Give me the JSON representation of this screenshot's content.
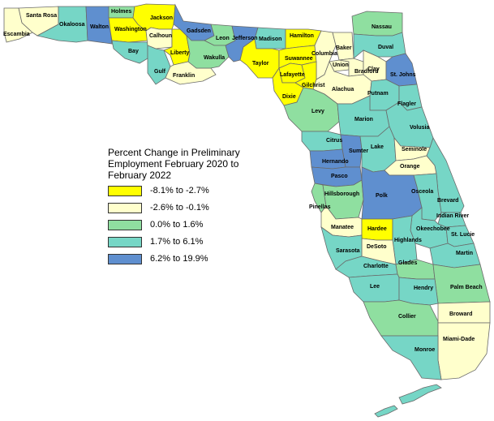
{
  "colors": {
    "c1": "#ffff00",
    "c2": "#ffffcc",
    "c3": "#8fdfa0",
    "c4": "#76d6c6",
    "c5": "#5f8fcf",
    "border": "#6a6a6a",
    "background": "#ffffff"
  },
  "legend": {
    "title": "Percent Change in Preliminary Employment February 2020 to February 2022",
    "items": [
      {
        "label": "-8.1% to -2.7%",
        "class": "c1"
      },
      {
        "label": "-2.6% to -0.1%",
        "class": "c2"
      },
      {
        "label": "0.0% to 1.6%",
        "class": "c3"
      },
      {
        "label": "1.7% to 6.1%",
        "class": "c4"
      },
      {
        "label": "6.2% to 19.9%",
        "class": "c5"
      }
    ]
  },
  "counties": [
    {
      "name": "Escambia",
      "class": "c2"
    },
    {
      "name": "Santa Rosa",
      "class": "c2"
    },
    {
      "name": "Okaloosa",
      "class": "c4"
    },
    {
      "name": "Walton",
      "class": "c5"
    },
    {
      "name": "Holmes",
      "class": "c3"
    },
    {
      "name": "Washington",
      "class": "c1"
    },
    {
      "name": "Jackson",
      "class": "c1"
    },
    {
      "name": "Bay",
      "class": "c4"
    },
    {
      "name": "Calhoun",
      "class": "c2"
    },
    {
      "name": "Gulf",
      "class": "c4"
    },
    {
      "name": "Liberty",
      "class": "c1"
    },
    {
      "name": "Gadsden",
      "class": "c5"
    },
    {
      "name": "Franklin",
      "class": "c2"
    },
    {
      "name": "Leon",
      "class": "c3"
    },
    {
      "name": "Wakulla",
      "class": "c3"
    },
    {
      "name": "Jefferson",
      "class": "c5"
    },
    {
      "name": "Madison",
      "class": "c4"
    },
    {
      "name": "Taylor",
      "class": "c1"
    },
    {
      "name": "Hamilton",
      "class": "c1"
    },
    {
      "name": "Suwannee",
      "class": "c1"
    },
    {
      "name": "Lafayette",
      "class": "c1"
    },
    {
      "name": "Columbia",
      "class": "c2"
    },
    {
      "name": "Dixie",
      "class": "c1"
    },
    {
      "name": "Gilchrist",
      "class": "c1"
    },
    {
      "name": "Baker",
      "class": "c2"
    },
    {
      "name": "Union",
      "class": "c2"
    },
    {
      "name": "Bradford",
      "class": "c2"
    },
    {
      "name": "Nassau",
      "class": "c3"
    },
    {
      "name": "Duval",
      "class": "c4"
    },
    {
      "name": "Clay",
      "class": "c2"
    },
    {
      "name": "St. Johns",
      "class": "c5"
    },
    {
      "name": "Alachua",
      "class": "c2"
    },
    {
      "name": "Putnam",
      "class": "c4"
    },
    {
      "name": "Flagler",
      "class": "c4"
    },
    {
      "name": "Levy",
      "class": "c3"
    },
    {
      "name": "Marion",
      "class": "c4"
    },
    {
      "name": "Volusia",
      "class": "c4"
    },
    {
      "name": "Citrus",
      "class": "c4"
    },
    {
      "name": "Sumter",
      "class": "c5"
    },
    {
      "name": "Lake",
      "class": "c4"
    },
    {
      "name": "Seminole",
      "class": "c2"
    },
    {
      "name": "Hernando",
      "class": "c5"
    },
    {
      "name": "Orange",
      "class": "c2"
    },
    {
      "name": "Pasco",
      "class": "c5"
    },
    {
      "name": "Brevard",
      "class": "c4"
    },
    {
      "name": "Hillsborough",
      "class": "c3"
    },
    {
      "name": "Pinellas",
      "class": "c3"
    },
    {
      "name": "Polk",
      "class": "c5"
    },
    {
      "name": "Osceola",
      "class": "c4"
    },
    {
      "name": "Indian River",
      "class": "c4"
    },
    {
      "name": "Manatee",
      "class": "c2"
    },
    {
      "name": "Hardee",
      "class": "c1"
    },
    {
      "name": "Okeechobee",
      "class": "c4"
    },
    {
      "name": "St. Lucie",
      "class": "c4"
    },
    {
      "name": "Highlands",
      "class": "c4"
    },
    {
      "name": "DeSoto",
      "class": "c2"
    },
    {
      "name": "Sarasota",
      "class": "c4"
    },
    {
      "name": "Martin",
      "class": "c4"
    },
    {
      "name": "Charlotte",
      "class": "c4"
    },
    {
      "name": "Glades",
      "class": "c3"
    },
    {
      "name": "Palm Beach",
      "class": "c3"
    },
    {
      "name": "Lee",
      "class": "c4"
    },
    {
      "name": "Hendry",
      "class": "c4"
    },
    {
      "name": "Collier",
      "class": "c3"
    },
    {
      "name": "Broward",
      "class": "c2"
    },
    {
      "name": "Miami-Dade",
      "class": "c2"
    },
    {
      "name": "Monroe",
      "class": "c4"
    }
  ]
}
